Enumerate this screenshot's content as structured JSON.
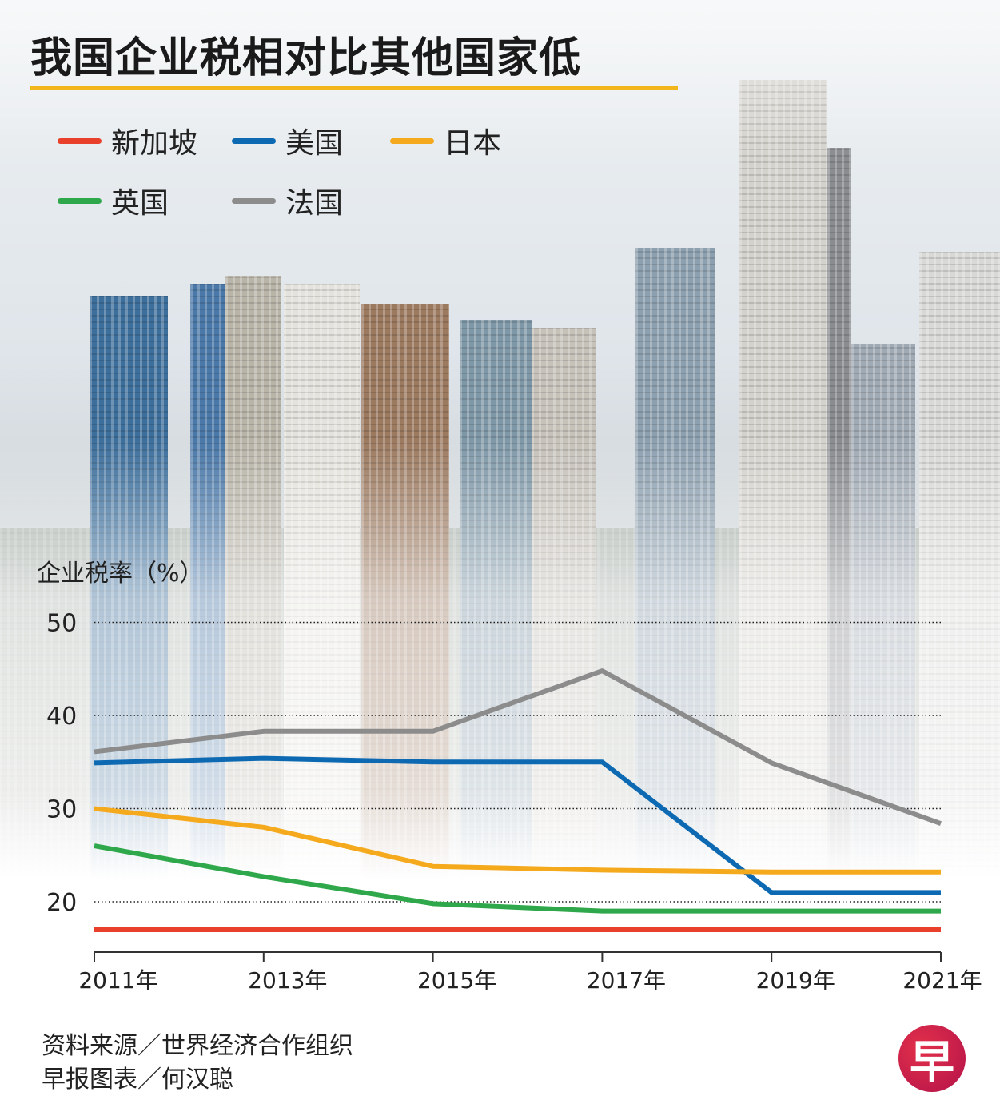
{
  "title": "我国企业税相对比其他国家低",
  "source_line": "资料来源／世界经济合作组织",
  "credit_line": "早报图表／何汉聪",
  "logo_text": "早",
  "colors": {
    "accent_rule": "#f2b51c",
    "logo": "#c81848"
  },
  "chart_data": {
    "type": "line",
    "title": "我国企业税相对比其他国家低",
    "ylabel": "企业税率（%）",
    "xlabel": "",
    "categories": [
      "2011年",
      "2013年",
      "2015年",
      "2017年",
      "2019年",
      "2021年"
    ],
    "x": [
      2011,
      2013,
      2015,
      2017,
      2019,
      2021
    ],
    "yticks": [
      "20",
      "30",
      "40",
      "50"
    ],
    "ytick_values": [
      20,
      30,
      40,
      50
    ],
    "ylim": [
      17,
      50
    ],
    "grid": "horizontal dotted",
    "legend_placement": "top-left",
    "series": [
      {
        "name": "新加坡",
        "color": "#e8402a",
        "values": [
          17,
          17,
          17,
          17,
          17,
          17
        ]
      },
      {
        "name": "美国",
        "color": "#0d6ab2",
        "values": [
          34.9,
          35.4,
          35,
          35,
          21,
          21
        ]
      },
      {
        "name": "日本",
        "color": "#f5a91c",
        "values": [
          30,
          28,
          23.8,
          23.4,
          23.2,
          23.2
        ]
      },
      {
        "name": "英国",
        "color": "#2ea84a",
        "values": [
          26,
          22.7,
          19.8,
          19,
          19,
          19
        ]
      },
      {
        "name": "法国",
        "color": "#8c8c8c",
        "values": [
          36.1,
          38.3,
          38.3,
          44.8,
          34.9,
          28.4
        ]
      }
    ]
  }
}
